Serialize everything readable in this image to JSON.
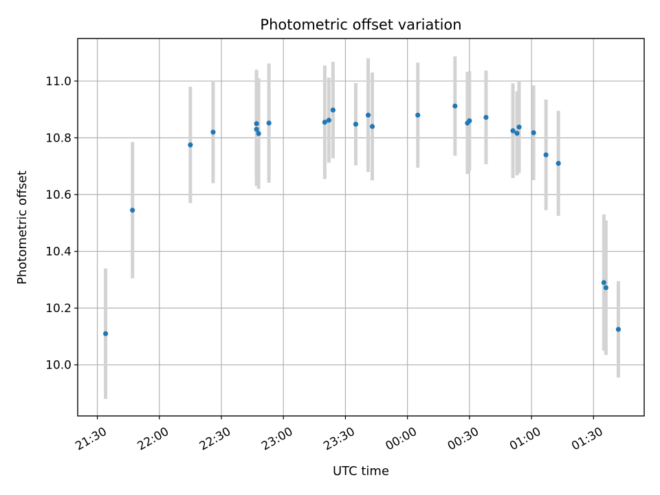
{
  "chart_data": {
    "type": "scatter",
    "title": "Photometric offset variation",
    "xlabel": "UTC time",
    "ylabel": "Photometric offset",
    "x_tick_labels": [
      "21:30",
      "22:00",
      "22:30",
      "23:00",
      "23:30",
      "00:00",
      "00:30",
      "01:00",
      "01:30"
    ],
    "x_ticks_minutes": [
      0,
      30,
      60,
      90,
      120,
      150,
      180,
      210,
      240
    ],
    "xlim_minutes": [
      -9.5,
      264.5
    ],
    "y_ticks": [
      10.0,
      10.2,
      10.4,
      10.6,
      10.8,
      11.0
    ],
    "y_tick_labels": [
      "10.0",
      "10.2",
      "10.4",
      "10.6",
      "10.8",
      "11.0"
    ],
    "ylim": [
      9.82,
      11.15
    ],
    "grid": true,
    "marker_color": "#1f77b4",
    "errorbar_color": "#d3d3d3",
    "series": [
      {
        "points": [
          {
            "t": "21:34",
            "y": 10.11,
            "err": 0.23
          },
          {
            "t": "21:47",
            "y": 10.545,
            "err": 0.24
          },
          {
            "t": "22:15",
            "y": 10.775,
            "err": 0.205
          },
          {
            "t": "22:26",
            "y": 10.82,
            "err": 0.18
          },
          {
            "t": "22:47",
            "y": 10.83,
            "err": 0.2
          },
          {
            "t": "22:47",
            "y": 10.85,
            "err": 0.19
          },
          {
            "t": "22:48",
            "y": 10.815,
            "err": 0.195
          },
          {
            "t": "22:53",
            "y": 10.852,
            "err": 0.21
          },
          {
            "t": "23:20",
            "y": 10.855,
            "err": 0.2
          },
          {
            "t": "23:22",
            "y": 10.862,
            "err": 0.15
          },
          {
            "t": "23:24",
            "y": 10.898,
            "err": 0.17
          },
          {
            "t": "23:35",
            "y": 10.848,
            "err": 0.145
          },
          {
            "t": "23:41",
            "y": 10.88,
            "err": 0.2
          },
          {
            "t": "23:43",
            "y": 10.84,
            "err": 0.19
          },
          {
            "t": "00:05",
            "y": 10.88,
            "err": 0.185
          },
          {
            "t": "00:23",
            "y": 10.912,
            "err": 0.175
          },
          {
            "t": "00:29",
            "y": 10.852,
            "err": 0.18
          },
          {
            "t": "00:30",
            "y": 10.86,
            "err": 0.175
          },
          {
            "t": "00:38",
            "y": 10.872,
            "err": 0.165
          },
          {
            "t": "00:51",
            "y": 10.825,
            "err": 0.167
          },
          {
            "t": "00:53",
            "y": 10.816,
            "err": 0.148
          },
          {
            "t": "00:54",
            "y": 10.838,
            "err": 0.162
          },
          {
            "t": "01:01",
            "y": 10.818,
            "err": 0.167
          },
          {
            "t": "01:07",
            "y": 10.74,
            "err": 0.195
          },
          {
            "t": "01:13",
            "y": 10.71,
            "err": 0.185
          },
          {
            "t": "01:35",
            "y": 10.29,
            "err": 0.24
          },
          {
            "t": "01:36",
            "y": 10.272,
            "err": 0.237
          },
          {
            "t": "01:42",
            "y": 10.125,
            "err": 0.17
          }
        ]
      }
    ]
  }
}
